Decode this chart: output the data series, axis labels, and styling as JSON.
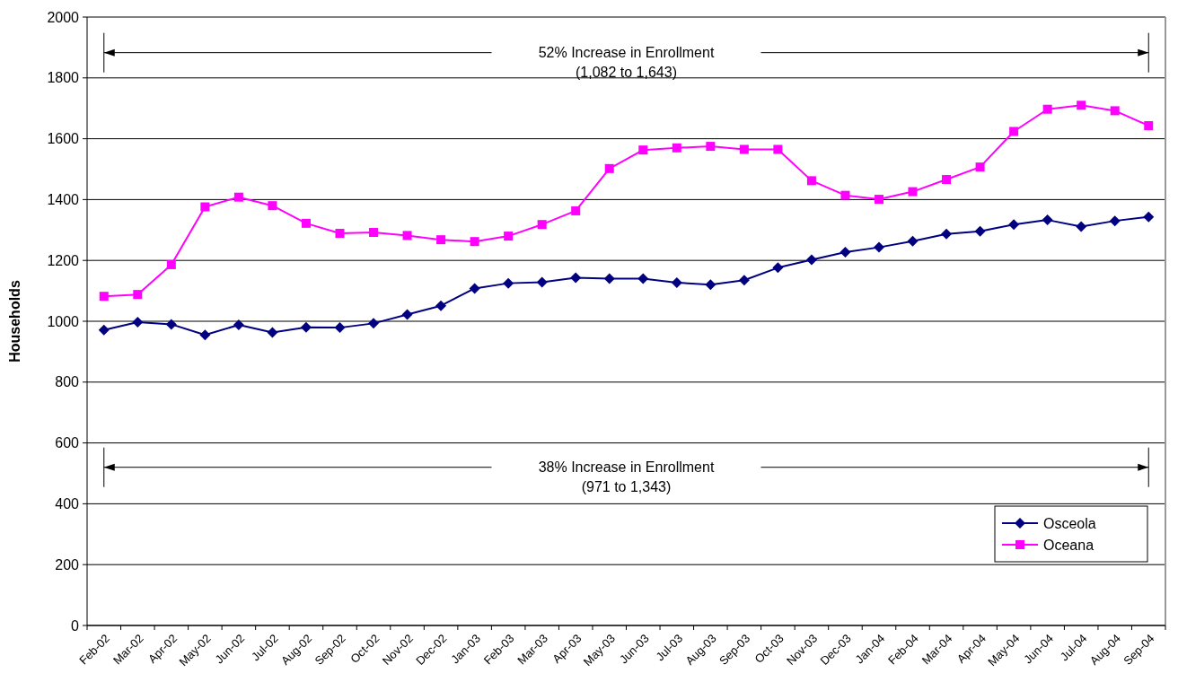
{
  "chart_data": {
    "type": "line",
    "ylabel": "Households",
    "categories": [
      "Feb-02",
      "Mar-02",
      "Apr-02",
      "May-02",
      "Jun-02",
      "Jul-02",
      "Aug-02",
      "Sep-02",
      "Oct-02",
      "Nov-02",
      "Dec-02",
      "Jan-03",
      "Feb-03",
      "Mar-03",
      "Apr-03",
      "May-03",
      "Jun-03",
      "Jul-03",
      "Aug-03",
      "Sep-03",
      "Oct-03",
      "Nov-03",
      "Dec-03",
      "Jan-04",
      "Feb-04",
      "Mar-04",
      "Apr-04",
      "May-04",
      "Jun-04",
      "Jul-04",
      "Aug-04",
      "Sep-04"
    ],
    "series": [
      {
        "name": "Osceola",
        "color": "#000080",
        "marker": "diamond",
        "values": [
          971,
          997,
          990,
          955,
          988,
          963,
          980,
          979,
          993,
          1022,
          1051,
          1108,
          1125,
          1128,
          1143,
          1140,
          1140,
          1127,
          1120,
          1135,
          1176,
          1202,
          1227,
          1243,
          1263,
          1287,
          1296,
          1318,
          1333,
          1311,
          1330,
          1343
        ]
      },
      {
        "name": "Oceana",
        "color": "#ff00ff",
        "marker": "square",
        "values": [
          1082,
          1088,
          1186,
          1376,
          1408,
          1380,
          1322,
          1289,
          1292,
          1282,
          1268,
          1262,
          1280,
          1318,
          1363,
          1502,
          1563,
          1570,
          1575,
          1565,
          1565,
          1462,
          1414,
          1401,
          1426,
          1466,
          1507,
          1624,
          1697,
          1710,
          1692,
          1643
        ]
      }
    ],
    "ylim": [
      0,
      2000
    ],
    "yticks": [
      0,
      200,
      400,
      600,
      800,
      1000,
      1200,
      1400,
      1600,
      1800,
      2000
    ],
    "grid": "y",
    "legend": "bottom right",
    "line_style": "solid",
    "annotations": [
      "52% Increase in Enrollment\n(1,082 to 1,643)",
      "38% Increase in Enrollment\n(971 to 1,343)"
    ]
  }
}
